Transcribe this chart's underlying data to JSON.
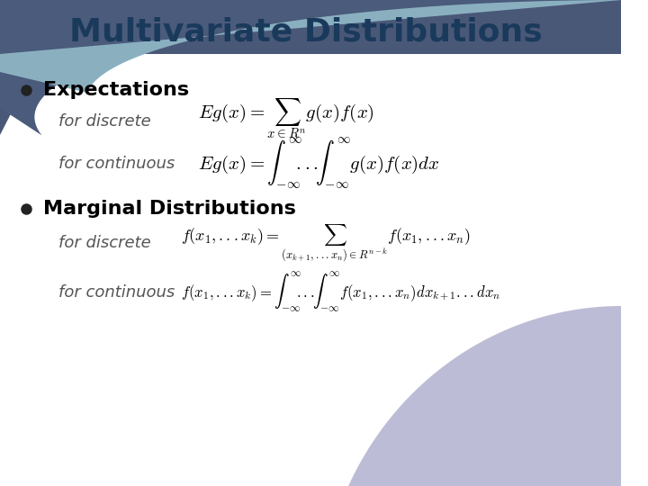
{
  "title": "Multivariate Distributions",
  "title_color": "#1a3a5c",
  "title_bg_color1": "#4a5a7a",
  "title_bg_color2": "#7aaabb",
  "bg_color": "#ffffff",
  "bullet_color": "#000000",
  "bullet1_header": "Expectations",
  "bullet2_header": "Marginal Distributions",
  "text_color": "#333333",
  "header_color": "#000000",
  "formula_color": "#000000",
  "label_color": "#555555",
  "corner_color": "#6a7aaa"
}
